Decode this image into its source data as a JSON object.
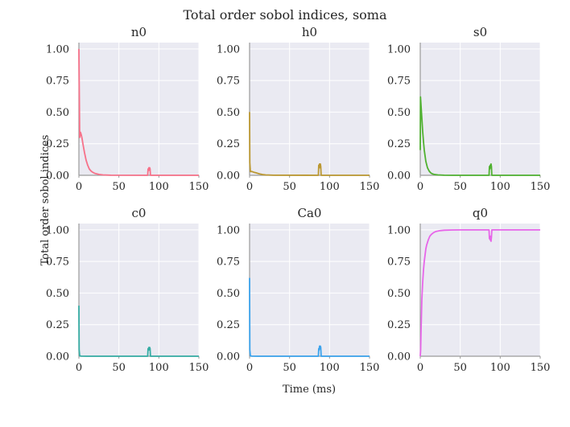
{
  "figure": {
    "title": "Total order sobol indices, soma",
    "xlabel": "Time (ms)",
    "ylabel": "Total order sobol indices"
  },
  "chart_data": [
    {
      "type": "line",
      "title": "n0",
      "color": "#f77189",
      "xlim": [
        0,
        150
      ],
      "ylim": [
        0,
        1.05
      ],
      "grid": true,
      "xticks": [
        0,
        50,
        100,
        150
      ],
      "yticks": [
        0.0,
        0.25,
        0.5,
        0.75,
        1.0
      ],
      "series": [
        {
          "x": [
            0,
            0.3,
            1,
            2,
            3,
            4,
            5,
            7,
            9,
            11,
            13,
            15,
            17,
            20,
            25,
            30,
            40,
            86,
            86.5,
            87,
            87.5,
            88,
            88.5,
            89,
            89.5,
            150
          ],
          "y": [
            1.0,
            0.78,
            0.3,
            0.34,
            0.32,
            0.29,
            0.25,
            0.18,
            0.12,
            0.08,
            0.05,
            0.035,
            0.025,
            0.015,
            0.007,
            0.003,
            0.001,
            0.0,
            0.05,
            0.04,
            0.06,
            0.04,
            0.06,
            0.05,
            0.0,
            0.0
          ]
        }
      ]
    },
    {
      "type": "line",
      "title": "h0",
      "color": "#bb9832",
      "xlim": [
        0,
        150
      ],
      "ylim": [
        0,
        1.05
      ],
      "grid": true,
      "xticks": [
        0,
        50,
        100,
        150
      ],
      "yticks": [
        0.0,
        0.25,
        0.5,
        0.75,
        1.0
      ],
      "series": [
        {
          "x": [
            0,
            0.3,
            1,
            3,
            5,
            8,
            12,
            16,
            20,
            30,
            86,
            86.5,
            87,
            87.5,
            88,
            88.5,
            89,
            89.5,
            150
          ],
          "y": [
            0.5,
            0.1,
            0.03,
            0.03,
            0.025,
            0.02,
            0.012,
            0.006,
            0.003,
            0.001,
            0.0,
            0.08,
            0.06,
            0.09,
            0.06,
            0.09,
            0.07,
            0.0,
            0.0
          ]
        }
      ]
    },
    {
      "type": "line",
      "title": "s0",
      "color": "#50b131",
      "xlim": [
        0,
        150
      ],
      "ylim": [
        0,
        1.05
      ],
      "grid": true,
      "xticks": [
        0,
        50,
        100,
        150
      ],
      "yticks": [
        0.0,
        0.25,
        0.5,
        0.75,
        1.0
      ],
      "series": [
        {
          "x": [
            0,
            0.3,
            1,
            2,
            3,
            4,
            5,
            7,
            9,
            11,
            13,
            15,
            18,
            22,
            30,
            40,
            86,
            86.5,
            87,
            87.5,
            88,
            88.5,
            89,
            89.5,
            150
          ],
          "y": [
            0.2,
            0.62,
            0.55,
            0.45,
            0.35,
            0.27,
            0.2,
            0.11,
            0.06,
            0.035,
            0.02,
            0.012,
            0.006,
            0.003,
            0.001,
            0.0,
            0.0,
            0.07,
            0.05,
            0.08,
            0.06,
            0.09,
            0.07,
            0.0,
            0.0
          ]
        }
      ]
    },
    {
      "type": "line",
      "title": "c0",
      "color": "#36ada4",
      "xlim": [
        0,
        150
      ],
      "ylim": [
        0,
        1.05
      ],
      "grid": true,
      "xticks": [
        0,
        50,
        100,
        150
      ],
      "yticks": [
        0.0,
        0.25,
        0.5,
        0.75,
        1.0
      ],
      "series": [
        {
          "x": [
            0,
            0.3,
            1,
            3,
            10,
            86,
            86.5,
            87,
            87.5,
            88,
            88.5,
            89,
            89.5,
            150
          ],
          "y": [
            0.4,
            0.05,
            0.003,
            0.001,
            0.0,
            0.0,
            0.06,
            0.05,
            0.07,
            0.05,
            0.07,
            0.06,
            0.0,
            0.0
          ]
        }
      ]
    },
    {
      "type": "line",
      "title": "Ca0",
      "color": "#3ba3ec",
      "xlim": [
        0,
        150
      ],
      "ylim": [
        0,
        1.05
      ],
      "grid": true,
      "xticks": [
        0,
        50,
        100,
        150
      ],
      "yticks": [
        0.0,
        0.25,
        0.5,
        0.75,
        1.0
      ],
      "series": [
        {
          "x": [
            0,
            0.3,
            1,
            3,
            10,
            86,
            86.5,
            87,
            87.5,
            88,
            88.5,
            89,
            89.5,
            150
          ],
          "y": [
            0.62,
            0.05,
            0.003,
            0.001,
            0.0,
            0.0,
            0.06,
            0.05,
            0.08,
            0.06,
            0.08,
            0.07,
            0.0,
            0.0
          ]
        }
      ]
    },
    {
      "type": "line",
      "title": "q0",
      "color": "#e766e9",
      "xlim": [
        0,
        150
      ],
      "ylim": [
        0,
        1.05
      ],
      "grid": true,
      "xticks": [
        0,
        50,
        100,
        150
      ],
      "yticks": [
        0.0,
        0.25,
        0.5,
        0.75,
        1.0
      ],
      "series": [
        {
          "x": [
            0,
            0.5,
            1,
            2,
            3,
            4,
            5,
            6,
            7,
            8,
            10,
            12,
            14,
            16,
            18,
            20,
            25,
            30,
            40,
            50,
            86,
            86.5,
            87,
            87.5,
            88,
            88.5,
            89,
            89.5,
            150
          ],
          "y": [
            0.0,
            0.05,
            0.2,
            0.45,
            0.58,
            0.68,
            0.75,
            0.8,
            0.85,
            0.88,
            0.92,
            0.95,
            0.965,
            0.975,
            0.983,
            0.988,
            0.994,
            0.997,
            0.999,
            1.0,
            1.0,
            0.93,
            0.95,
            0.92,
            0.95,
            0.91,
            0.94,
            1.0,
            1.0
          ]
        }
      ]
    }
  ]
}
